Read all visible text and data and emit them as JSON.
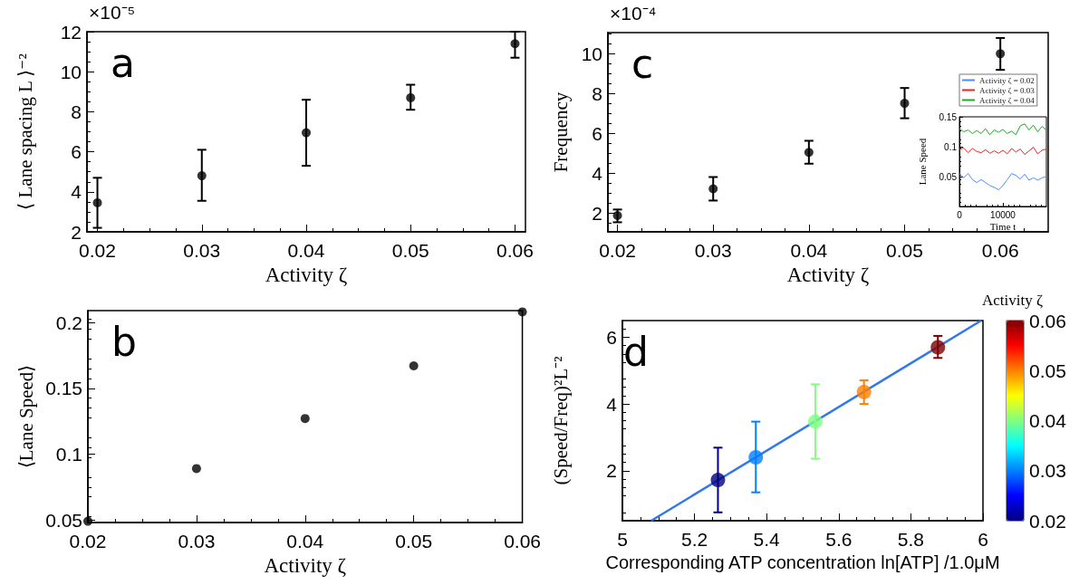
{
  "chart_data": [
    {
      "type": "scatter",
      "xlabel": "Activity ζ",
      "ylabel": "⟨ Lane spacing L ⟩⁻²",
      "annotations": [
        "a",
        "×10⁻⁵"
      ],
      "color": "#000000",
      "marker": "circle",
      "x": [
        0.02,
        0.03,
        0.04,
        0.05,
        0.06
      ],
      "values": [
        3.45,
        4.8,
        6.95,
        8.7,
        11.4
      ],
      "errors": [
        [
          2.2,
          4.7
        ],
        [
          3.55,
          6.1
        ],
        [
          5.3,
          8.6
        ],
        [
          8.1,
          9.35
        ],
        [
          10.7,
          12
        ]
      ],
      "xlim": [
        0.019,
        0.061
      ],
      "ylim": [
        2,
        12
      ],
      "xticks": [
        0.02,
        0.03,
        0.04,
        0.05,
        0.06
      ],
      "yticks": [
        2,
        4,
        6,
        8,
        10,
        12
      ]
    },
    {
      "type": "scatter",
      "xlabel": "Activity ζ",
      "ylabel": "Frequency",
      "annotations": [
        "c",
        "×10⁻⁴"
      ],
      "color": "#000000",
      "marker": "circle",
      "x": [
        0.02,
        0.03,
        0.04,
        0.05,
        0.06
      ],
      "values": [
        1.87,
        3.21,
        5.04,
        7.5,
        9.99
      ],
      "errors": [
        [
          1.53,
          2.17
        ],
        [
          2.62,
          3.8
        ],
        [
          4.47,
          5.62
        ],
        [
          6.75,
          8.27
        ],
        [
          9.18,
          10.78
        ]
      ],
      "xlim": [
        0.019,
        0.065
      ],
      "ylim": [
        1.05,
        11.05
      ],
      "xticks": [
        0.02,
        0.03,
        0.04,
        0.05,
        0.06
      ],
      "yticks": [
        2,
        4,
        6,
        8,
        10
      ]
    },
    {
      "type": "line",
      "xlabel": "Time t",
      "ylabel": "Lane Speed",
      "legend": "top",
      "xlim": [
        0,
        20000
      ],
      "ylim": [
        0,
        0.15
      ],
      "xticks": [
        0,
        10000
      ],
      "yticks": [
        0.05,
        0.1,
        0.15
      ],
      "x": [
        0,
        1000,
        2000,
        3000,
        4000,
        5000,
        6000,
        7000,
        8000,
        9000,
        10000,
        11000,
        12000,
        13000,
        14000,
        15000,
        16000,
        17000,
        18000,
        19000,
        20000
      ],
      "series": [
        {
          "name": "Activity ζ = 0.02",
          "color": "#4c8cff",
          "values": [
            0.055,
            0.048,
            0.055,
            0.045,
            0.04,
            0.045,
            0.04,
            0.035,
            0.032,
            0.028,
            0.035,
            0.045,
            0.055,
            0.052,
            0.046,
            0.054,
            0.044,
            0.048,
            0.044,
            0.048,
            0.05
          ]
        },
        {
          "name": "Activity ζ = 0.03",
          "color": "#ee2222",
          "values": [
            0.095,
            0.098,
            0.09,
            0.097,
            0.092,
            0.09,
            0.095,
            0.089,
            0.093,
            0.089,
            0.094,
            0.088,
            0.097,
            0.091,
            0.096,
            0.087,
            0.093,
            0.099,
            0.088,
            0.094,
            0.096
          ]
        },
        {
          "name": "Activity ζ = 0.04",
          "color": "#22aa22",
          "values": [
            0.13,
            0.125,
            0.128,
            0.122,
            0.127,
            0.122,
            0.13,
            0.12,
            0.128,
            0.124,
            0.129,
            0.122,
            0.126,
            0.12,
            0.135,
            0.138,
            0.128,
            0.136,
            0.125,
            0.134,
            0.128
          ]
        }
      ]
    },
    {
      "type": "scatter",
      "xlabel": "Activity ζ",
      "ylabel": "⟨Lane Speed⟩",
      "annotations": [
        "b"
      ],
      "color": "#000000",
      "marker": "circle",
      "x": [
        0.02,
        0.03,
        0.04,
        0.05,
        0.06
      ],
      "values": [
        0.049,
        0.089,
        0.127,
        0.167,
        0.208
      ],
      "xlim": [
        0.02,
        0.06
      ],
      "ylim": [
        0.048,
        0.209
      ],
      "xticks": [
        0.02,
        0.03,
        0.04,
        0.05,
        0.06
      ],
      "yticks": [
        0.05,
        0.1,
        0.15,
        0.2
      ]
    },
    {
      "type": "scatter",
      "xlabel": "Corresponding ATP concentration ln[ATP] /1.0μM",
      "ylabel": "(Speed/Freq)²L⁻²",
      "clabel": "Activity ζ",
      "annotations": [
        "d"
      ],
      "clim": [
        0.02,
        0.06
      ],
      "cticks": [
        0.02,
        0.03,
        0.04,
        0.05,
        0.06
      ],
      "xlim": [
        5,
        6
      ],
      "ylim": [
        0.5,
        6.5
      ],
      "xticks": [
        5,
        5.2,
        5.4,
        5.6,
        5.8,
        6
      ],
      "yticks": [
        2,
        4,
        6
      ],
      "series": [
        {
          "marker": "circle",
          "colors": [
            "#00007f",
            "#0080ff",
            "#80ff80",
            "#ff8000",
            "#7f0000"
          ],
          "x": [
            5.265,
            5.37,
            5.535,
            5.67,
            5.875
          ],
          "values": [
            1.72,
            2.4,
            3.47,
            4.36,
            5.7
          ],
          "cvalues": [
            0.02,
            0.03,
            0.04,
            0.05,
            0.06
          ],
          "errors": [
            [
              0.75,
              2.69
            ],
            [
              1.35,
              3.47
            ],
            [
              2.36,
              4.59
            ],
            [
              4.0,
              4.71
            ],
            [
              5.38,
              6.04
            ]
          ]
        },
        {
          "type": "line",
          "x": [
            5.08,
            5.995
          ],
          "values": [
            0.5,
            6.5
          ],
          "color": "#3377ee"
        }
      ]
    }
  ]
}
